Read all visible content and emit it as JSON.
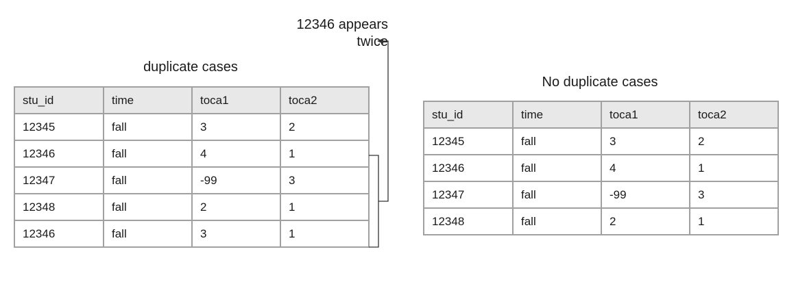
{
  "annotation": {
    "line1": "12346 appears",
    "line2": "twice"
  },
  "left_table": {
    "caption": "duplicate cases",
    "headers": [
      "stu_id",
      "time",
      "toca1",
      "toca2"
    ],
    "rows": [
      [
        "12345",
        "fall",
        "3",
        "2"
      ],
      [
        "12346",
        "fall",
        "4",
        "1"
      ],
      [
        "12347",
        "fall",
        "-99",
        "3"
      ],
      [
        "12348",
        "fall",
        "2",
        "1"
      ],
      [
        "12346",
        "fall",
        "3",
        "1"
      ]
    ]
  },
  "right_table": {
    "caption": "No duplicate cases",
    "headers": [
      "stu_id",
      "time",
      "toca1",
      "toca2"
    ],
    "rows": [
      [
        "12345",
        "fall",
        "3",
        "2"
      ],
      [
        "12346",
        "fall",
        "4",
        "1"
      ],
      [
        "12347",
        "fall",
        "-99",
        "3"
      ],
      [
        "12348",
        "fall",
        "2",
        "1"
      ]
    ]
  },
  "colors": {
    "border": "#a0a0a0",
    "header_bg": "#e8e8e8",
    "connector": "#333333"
  }
}
